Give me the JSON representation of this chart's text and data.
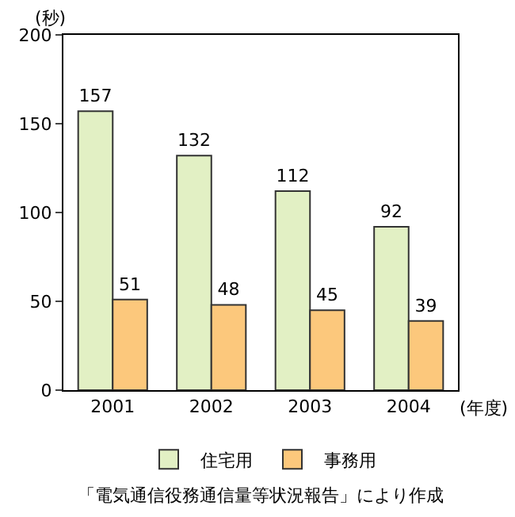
{
  "chart_data": {
    "type": "bar",
    "ylabel": "(秒)",
    "xlabel": "(年度)",
    "categories": [
      "2001",
      "2002",
      "2003",
      "2004"
    ],
    "series": [
      {
        "name": "住宅用",
        "color": "#e2f0c4",
        "values": [
          157,
          132,
          112,
          92
        ]
      },
      {
        "name": "事務用",
        "color": "#fcc87c",
        "values": [
          51,
          48,
          45,
          39
        ]
      }
    ],
    "ylim": [
      0,
      200
    ],
    "yticks": [
      0,
      50,
      100,
      150,
      200
    ],
    "grid": false,
    "legend": "bottom",
    "data_labels": true,
    "annotations": [
      "「電気通信役務通信量等状況報告」により作成"
    ]
  }
}
